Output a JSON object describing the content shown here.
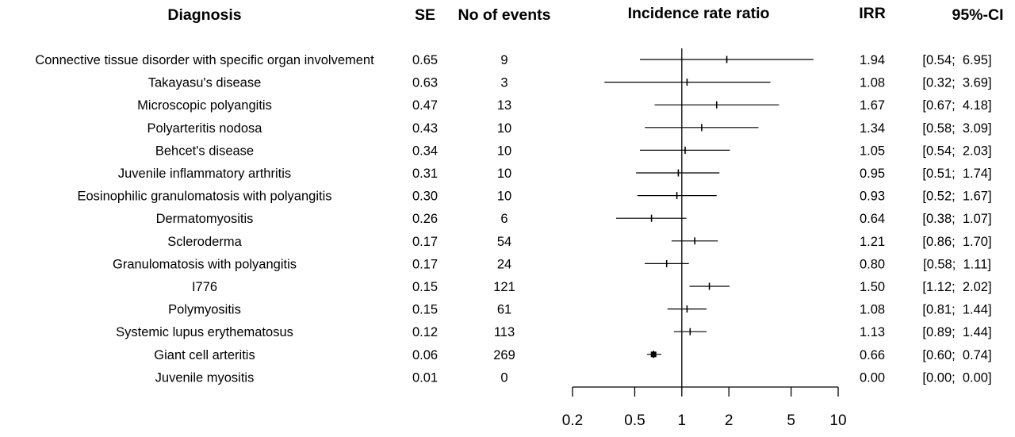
{
  "chart_data": {
    "type": "forest",
    "headers": {
      "diagnosis": "Diagnosis",
      "se": "SE",
      "events": "No of events",
      "plot": "Incidence rate ratio",
      "irr": "IRR",
      "ci": "95%-CI"
    },
    "rows": [
      {
        "diagnosis": "Connective tissue disorder with specific organ involvement",
        "se": "0.65",
        "events": "9",
        "irr": 1.94,
        "lower": 0.54,
        "upper": 6.95,
        "irr_text": "1.94",
        "ci_text": "[0.54;  6.95]"
      },
      {
        "diagnosis": "Takayasu's disease",
        "se": "0.63",
        "events": "3",
        "irr": 1.08,
        "lower": 0.32,
        "upper": 3.69,
        "irr_text": "1.08",
        "ci_text": "[0.32;  3.69]"
      },
      {
        "diagnosis": "Microscopic polyangitis",
        "se": "0.47",
        "events": "13",
        "irr": 1.67,
        "lower": 0.67,
        "upper": 4.18,
        "irr_text": "1.67",
        "ci_text": "[0.67;  4.18]"
      },
      {
        "diagnosis": "Polyarteritis nodosa",
        "se": "0.43",
        "events": "10",
        "irr": 1.34,
        "lower": 0.58,
        "upper": 3.09,
        "irr_text": "1.34",
        "ci_text": "[0.58;  3.09]"
      },
      {
        "diagnosis": "Behcet's disease",
        "se": "0.34",
        "events": "10",
        "irr": 1.05,
        "lower": 0.54,
        "upper": 2.03,
        "irr_text": "1.05",
        "ci_text": "[0.54;  2.03]"
      },
      {
        "diagnosis": "Juvenile inflammatory arthritis",
        "se": "0.31",
        "events": "10",
        "irr": 0.95,
        "lower": 0.51,
        "upper": 1.74,
        "irr_text": "0.95",
        "ci_text": "[0.51;  1.74]"
      },
      {
        "diagnosis": "Eosinophilic granulomatosis with polyangitis",
        "se": "0.30",
        "events": "10",
        "irr": 0.93,
        "lower": 0.52,
        "upper": 1.67,
        "irr_text": "0.93",
        "ci_text": "[0.52;  1.67]"
      },
      {
        "diagnosis": "Dermatomyositis",
        "se": "0.26",
        "events": "6",
        "irr": 0.64,
        "lower": 0.38,
        "upper": 1.07,
        "irr_text": "0.64",
        "ci_text": "[0.38;  1.07]"
      },
      {
        "diagnosis": "Scleroderma",
        "se": "0.17",
        "events": "54",
        "irr": 1.21,
        "lower": 0.86,
        "upper": 1.7,
        "irr_text": "1.21",
        "ci_text": "[0.86;  1.70]"
      },
      {
        "diagnosis": "Granulomatosis with polyangitis",
        "se": "0.17",
        "events": "24",
        "irr": 0.8,
        "lower": 0.58,
        "upper": 1.11,
        "irr_text": "0.80",
        "ci_text": "[0.58;  1.11]"
      },
      {
        "diagnosis": "I776",
        "se": "0.15",
        "events": "121",
        "irr": 1.5,
        "lower": 1.12,
        "upper": 2.02,
        "irr_text": "1.50",
        "ci_text": "[1.12;  2.02]"
      },
      {
        "diagnosis": "Polymyositis",
        "se": "0.15",
        "events": "61",
        "irr": 1.08,
        "lower": 0.81,
        "upper": 1.44,
        "irr_text": "1.08",
        "ci_text": "[0.81;  1.44]"
      },
      {
        "diagnosis": "Systemic lupus erythematosus",
        "se": "0.12",
        "events": "113",
        "irr": 1.13,
        "lower": 0.89,
        "upper": 1.44,
        "irr_text": "1.13",
        "ci_text": "[0.89;  1.44]"
      },
      {
        "diagnosis": "Giant cell arteritis",
        "se": "0.06",
        "events": "269",
        "irr": 0.66,
        "lower": 0.6,
        "upper": 0.74,
        "irr_text": "0.66",
        "ci_text": "[0.60;  0.74]"
      },
      {
        "diagnosis": "Juvenile myositis",
        "se": "0.01",
        "events": "0",
        "irr": 0.0,
        "lower": 0.0,
        "upper": 0.0,
        "irr_text": "0.00",
        "ci_text": "[0.00;  0.00]"
      }
    ],
    "x_scale": "log",
    "xlim": [
      0.2,
      10
    ],
    "x_ticks": [
      0.2,
      0.5,
      1,
      2,
      5,
      10
    ],
    "x_tick_labels": [
      "0.2",
      "0.5",
      "1",
      "2",
      "5",
      "10"
    ],
    "reference_line": 1,
    "grid": false,
    "colors": {
      "ink": "#000000",
      "background": "#ffffff"
    }
  }
}
